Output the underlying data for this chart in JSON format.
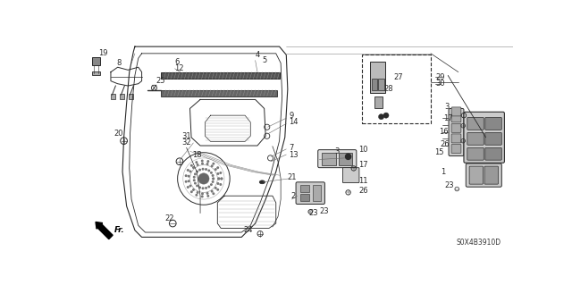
{
  "bg_color": "#ffffff",
  "fig_width": 6.4,
  "fig_height": 3.19,
  "dpi": 100,
  "diagram_code": "S0X4B3910D",
  "line_color": "#2a2a2a",
  "gray1": "#888888",
  "gray2": "#aaaaaa",
  "gray3": "#cccccc"
}
